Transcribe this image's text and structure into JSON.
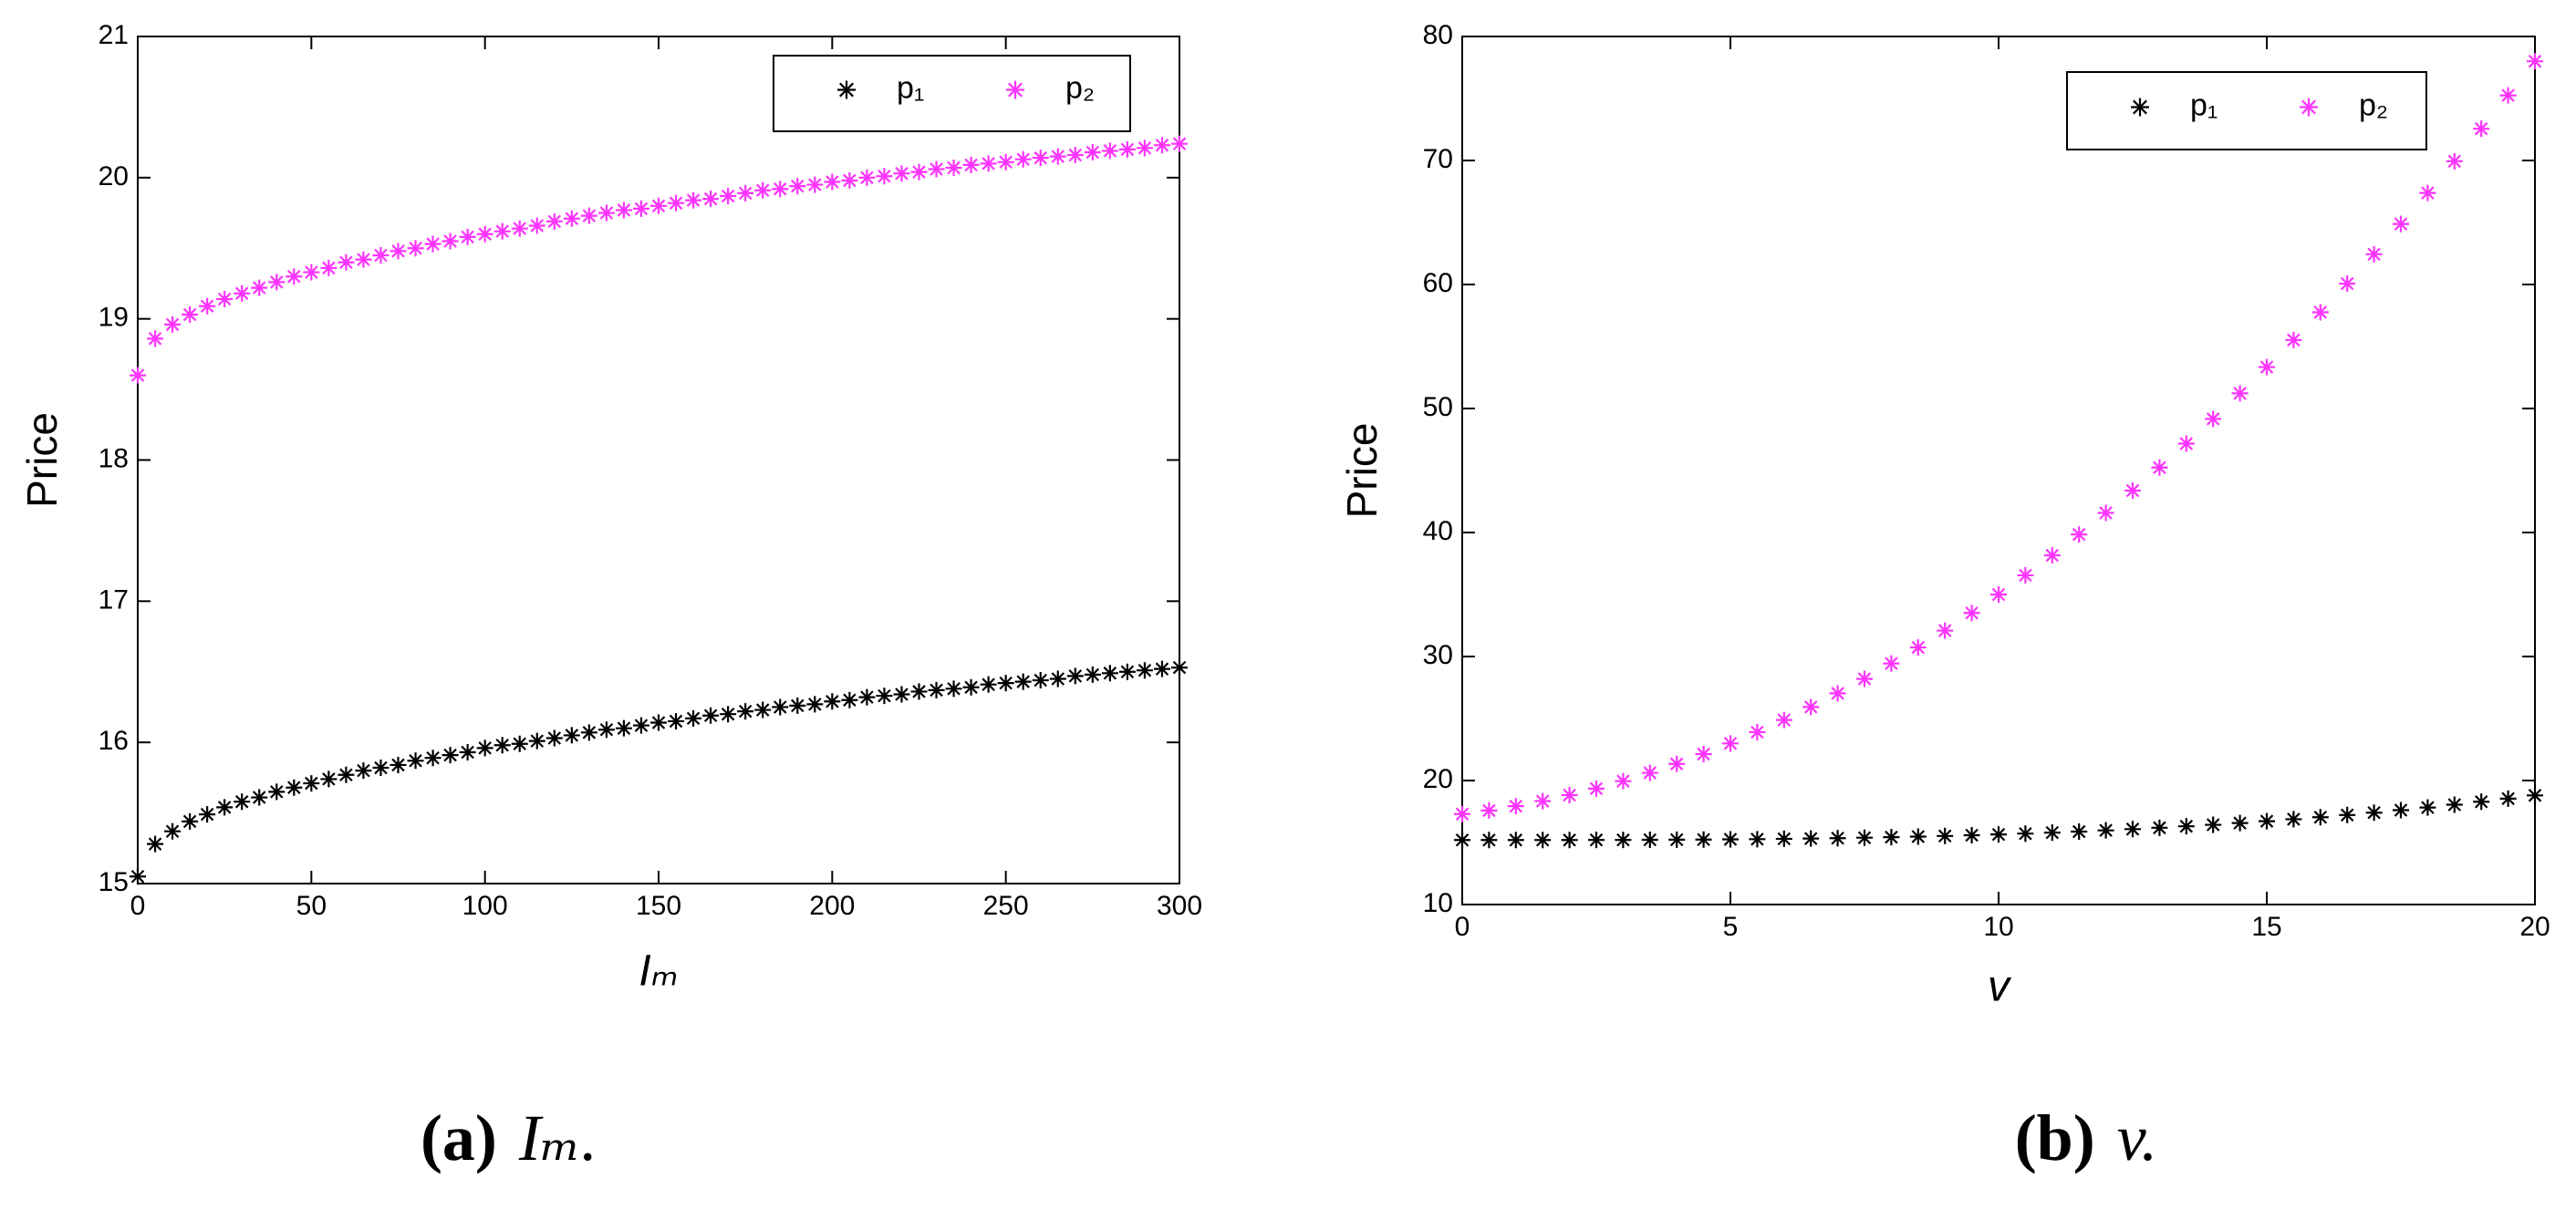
{
  "chart_data": [
    {
      "type": "scatter",
      "ylabel": "Price",
      "xlabel": "Iₘ",
      "caption_label": "(a)",
      "caption_text": "Iₘ.",
      "xlim": [
        0,
        300
      ],
      "xticks": [
        0,
        50,
        100,
        150,
        200,
        250,
        300
      ],
      "ylim": [
        15,
        21
      ],
      "yticks": [
        15,
        16,
        17,
        18,
        19,
        20,
        21
      ],
      "x": [
        0,
        5,
        10,
        15,
        20,
        25,
        30,
        35,
        40,
        45,
        50,
        55,
        60,
        65,
        70,
        75,
        80,
        85,
        90,
        95,
        100,
        105,
        110,
        115,
        120,
        125,
        130,
        135,
        140,
        145,
        150,
        155,
        160,
        165,
        170,
        175,
        180,
        185,
        190,
        195,
        200,
        205,
        210,
        215,
        220,
        225,
        230,
        235,
        240,
        245,
        250,
        255,
        260,
        265,
        270,
        275,
        280,
        285,
        290,
        295,
        300
      ],
      "series": [
        {
          "name": "p₁",
          "color": "#000000",
          "values": [
            15.05,
            15.28,
            15.37,
            15.44,
            15.49,
            15.54,
            15.58,
            15.61,
            15.65,
            15.68,
            15.71,
            15.74,
            15.77,
            15.8,
            15.82,
            15.84,
            15.87,
            15.89,
            15.91,
            15.93,
            15.96,
            15.98,
            15.99,
            16.01,
            16.03,
            16.05,
            16.07,
            16.09,
            16.1,
            16.12,
            16.14,
            16.15,
            16.17,
            16.19,
            16.2,
            16.22,
            16.23,
            16.25,
            16.26,
            16.27,
            16.29,
            16.3,
            16.32,
            16.33,
            16.34,
            16.36,
            16.37,
            16.38,
            16.39,
            16.41,
            16.42,
            16.43,
            16.44,
            16.45,
            16.47,
            16.48,
            16.49,
            16.5,
            16.51,
            16.52,
            16.53
          ]
        },
        {
          "name": "p₂",
          "color": "#ff33ff",
          "values": [
            18.6,
            18.86,
            18.96,
            19.03,
            19.09,
            19.14,
            19.18,
            19.22,
            19.26,
            19.3,
            19.33,
            19.36,
            19.4,
            19.42,
            19.45,
            19.48,
            19.5,
            19.53,
            19.55,
            19.58,
            19.6,
            19.62,
            19.64,
            19.66,
            19.69,
            19.71,
            19.73,
            19.75,
            19.77,
            19.78,
            19.8,
            19.82,
            19.84,
            19.85,
            19.87,
            19.89,
            19.91,
            19.92,
            19.94,
            19.95,
            19.97,
            19.98,
            20.0,
            20.01,
            20.03,
            20.04,
            20.06,
            20.07,
            20.09,
            20.1,
            20.11,
            20.13,
            20.14,
            20.15,
            20.16,
            20.18,
            20.19,
            20.2,
            20.21,
            20.23,
            20.24
          ]
        }
      ],
      "legend": "upper right"
    },
    {
      "type": "scatter",
      "ylabel": "Price",
      "xlabel": "v",
      "caption_label": "(b)",
      "caption_text": "v.",
      "xlim": [
        0,
        20
      ],
      "xticks": [
        0,
        5,
        10,
        15,
        20
      ],
      "ylim": [
        10,
        80
      ],
      "yticks": [
        10,
        20,
        30,
        40,
        50,
        60,
        70,
        80
      ],
      "x": [
        0,
        0.5,
        1,
        1.5,
        2,
        2.5,
        3,
        3.5,
        4,
        4.5,
        5,
        5.5,
        6,
        6.5,
        7,
        7.5,
        8,
        8.5,
        9,
        9.5,
        10,
        10.5,
        11,
        11.5,
        12,
        12.5,
        13,
        13.5,
        14,
        14.5,
        15,
        15.5,
        16,
        16.5,
        17,
        17.5,
        18,
        18.5,
        19,
        19.5,
        20
      ],
      "series": [
        {
          "name": "p₁",
          "color": "#000000",
          "values": [
            15.2,
            15.2,
            15.2,
            15.2,
            15.2,
            15.21,
            15.21,
            15.22,
            15.23,
            15.24,
            15.26,
            15.27,
            15.3,
            15.32,
            15.35,
            15.39,
            15.43,
            15.48,
            15.53,
            15.59,
            15.65,
            15.72,
            15.8,
            15.88,
            15.98,
            16.08,
            16.19,
            16.31,
            16.43,
            16.57,
            16.72,
            16.88,
            17.04,
            17.22,
            17.41,
            17.61,
            17.82,
            18.05,
            18.29,
            18.54,
            18.8
          ]
        },
        {
          "name": "p₂",
          "color": "#ff33ff",
          "values": [
            17.3,
            17.58,
            17.93,
            18.34,
            18.82,
            19.35,
            19.95,
            20.62,
            21.34,
            22.13,
            22.99,
            23.9,
            24.88,
            25.93,
            27.03,
            28.2,
            29.44,
            30.73,
            32.09,
            33.51,
            35.0,
            36.55,
            38.16,
            39.84,
            41.58,
            43.38,
            45.24,
            47.17,
            49.16,
            51.22,
            53.34,
            55.52,
            57.76,
            60.07,
            62.44,
            64.88,
            67.38,
            69.94,
            72.56,
            75.25,
            78.0
          ]
        }
      ],
      "legend": "upper right"
    }
  ]
}
